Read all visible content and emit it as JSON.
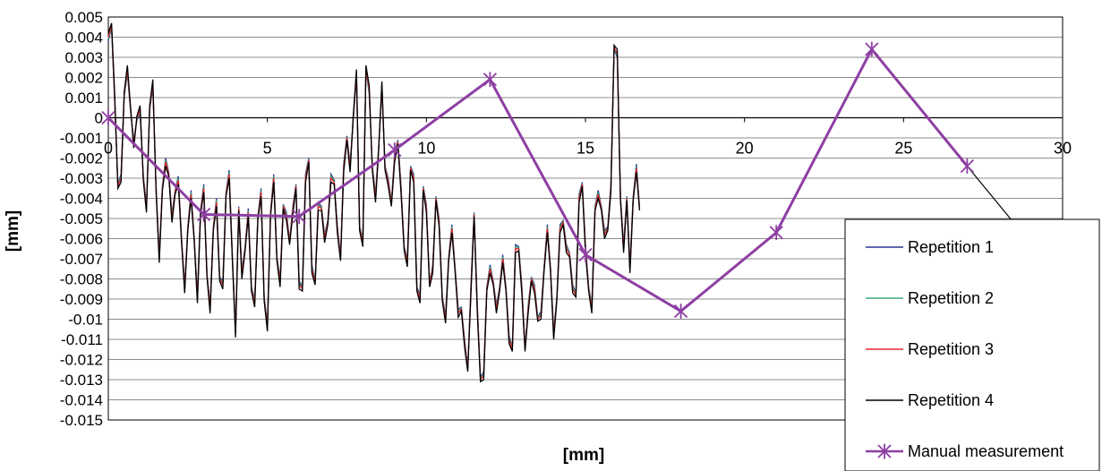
{
  "chart_data": {
    "type": "line",
    "title": "",
    "xlabel": "[mm]",
    "ylabel": "[mm]",
    "xlim": [
      0,
      30
    ],
    "ylim": [
      -0.015,
      0.005
    ],
    "xticks": [
      "0",
      "5",
      "10",
      "15",
      "20",
      "25",
      "30"
    ],
    "yticks": [
      "0.005",
      "0.004",
      "0.003",
      "0.002",
      "0.001",
      "0",
      "-0.001",
      "-0.002",
      "-0.003",
      "-0.004",
      "-0.005",
      "-0.006",
      "-0.007",
      "-0.008",
      "-0.009",
      "-0.01",
      "-0.011",
      "-0.012",
      "-0.013",
      "-0.014",
      "-0.015"
    ],
    "grid": true,
    "legend_position": "bottom-right",
    "repetition_x_step": 0.1,
    "repetition_base": [
      0.004,
      0.0046,
      0.001,
      -0.0034,
      -0.003,
      0.0012,
      0.0024,
      0.0004,
      -0.0013,
      0.0,
      0.0004,
      -0.003,
      -0.0045,
      0.0005,
      0.0017,
      -0.0035,
      -0.007,
      -0.0035,
      -0.0022,
      -0.0028,
      -0.005,
      -0.0037,
      -0.0031,
      -0.006,
      -0.0085,
      -0.0055,
      -0.0038,
      -0.006,
      -0.009,
      -0.0047,
      -0.0035,
      -0.0078,
      -0.0095,
      -0.0055,
      -0.0042,
      -0.008,
      -0.0083,
      -0.0038,
      -0.0028,
      -0.007,
      -0.0107,
      -0.0045,
      -0.0078,
      -0.0065,
      -0.0047,
      -0.0085,
      -0.0092,
      -0.005,
      -0.0037,
      -0.009,
      -0.0104,
      -0.0048,
      -0.003,
      -0.007,
      -0.0082,
      -0.0044,
      -0.0049,
      -0.0062,
      -0.0046,
      -0.0034,
      -0.0083,
      -0.0085,
      -0.003,
      -0.0021,
      -0.0075,
      -0.0082,
      -0.0044,
      -0.0045,
      -0.006,
      -0.0052,
      -0.003,
      -0.0032,
      -0.0055,
      -0.007,
      -0.0025,
      -0.001,
      -0.0025,
      0.0,
      0.0022,
      -0.0055,
      -0.0062,
      0.0025,
      0.0014,
      -0.0025,
      -0.004,
      -0.0015,
      0.0016,
      -0.0025,
      -0.0032,
      -0.0043,
      -0.002,
      -0.0012,
      -0.0035,
      -0.0065,
      -0.0072,
      -0.0025,
      -0.003,
      -0.0085,
      -0.009,
      -0.0035,
      -0.0045,
      -0.0083,
      -0.0075,
      -0.004,
      -0.0052,
      -0.009,
      -0.01,
      -0.007,
      -0.0055,
      -0.0075,
      -0.0097,
      -0.0095,
      -0.0112,
      -0.0125,
      -0.0085,
      -0.0048,
      -0.0095,
      -0.013,
      -0.0128,
      -0.0085,
      -0.0075,
      -0.0082,
      -0.0095,
      -0.0085,
      -0.007,
      -0.0085,
      -0.011,
      -0.0115,
      -0.0065,
      -0.0065,
      -0.0085,
      -0.0115,
      -0.0095,
      -0.008,
      -0.0085,
      -0.01,
      -0.0098,
      -0.0075,
      -0.0055,
      -0.0075,
      -0.0108,
      -0.009,
      -0.0055,
      -0.0052,
      -0.0065,
      -0.0068,
      -0.0085,
      -0.0088,
      -0.004,
      -0.0033,
      -0.0065,
      -0.0085,
      -0.0095,
      -0.0045,
      -0.0038,
      -0.0045,
      -0.0058,
      -0.0055,
      -0.0035,
      0.0035,
      0.0032,
      -0.004,
      -0.0065,
      -0.004,
      -0.0075,
      -0.004,
      -0.0025,
      -0.0045
    ],
    "series": [
      {
        "name": "Repetition 1",
        "color": "#2c3592",
        "offset": 0.0002
      },
      {
        "name": "Repetition 2",
        "color": "#3aa877",
        "offset": 0.0001
      },
      {
        "name": "Repetition 3",
        "color": "#e8232e",
        "offset": 0.0
      },
      {
        "name": "Repetition 4",
        "color": "#000000",
        "offset": -0.0002
      },
      {
        "name": "Manual measurement",
        "color": "#8e3fa3",
        "x": [
          0,
          3,
          6,
          9,
          12,
          15,
          18,
          21,
          24,
          27
        ],
        "y": [
          0.0,
          -0.0048,
          -0.0049,
          -0.0016,
          0.0019,
          -0.0068,
          -0.0096,
          -0.0057,
          0.0034,
          -0.0024
        ],
        "extension": {
          "x": [
            27,
            29.5
          ],
          "y": [
            -0.0024,
            -0.0072
          ]
        }
      }
    ]
  }
}
